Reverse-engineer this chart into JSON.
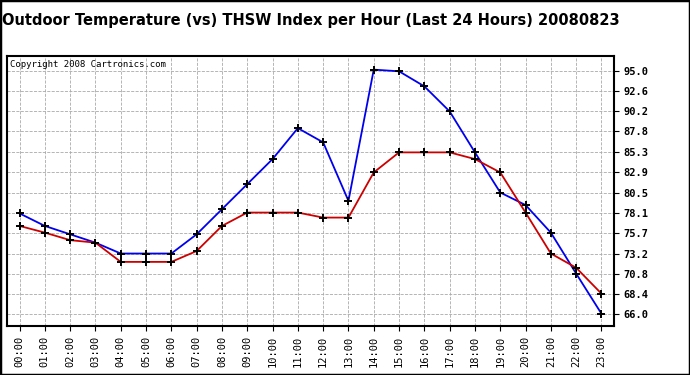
{
  "title": "Outdoor Temperature (vs) THSW Index per Hour (Last 24 Hours) 20080823",
  "copyright_text": "Copyright 2008 Cartronics.com",
  "hours": [
    "00:00",
    "01:00",
    "02:00",
    "03:00",
    "04:00",
    "05:00",
    "06:00",
    "07:00",
    "08:00",
    "09:00",
    "10:00",
    "11:00",
    "12:00",
    "13:00",
    "14:00",
    "15:00",
    "16:00",
    "17:00",
    "18:00",
    "19:00",
    "20:00",
    "21:00",
    "22:00",
    "23:00"
  ],
  "thsw_blue": [
    78.0,
    76.5,
    75.5,
    74.5,
    73.2,
    73.2,
    73.2,
    75.5,
    78.5,
    81.5,
    84.5,
    88.2,
    86.5,
    79.5,
    95.2,
    95.0,
    93.2,
    90.2,
    85.3,
    80.5,
    79.0,
    75.7,
    70.8,
    66.0
  ],
  "temp_red": [
    76.5,
    75.7,
    74.8,
    74.5,
    72.2,
    72.2,
    72.2,
    73.5,
    76.5,
    78.1,
    78.1,
    78.1,
    77.5,
    77.5,
    82.9,
    85.3,
    85.3,
    85.3,
    84.5,
    82.9,
    78.1,
    73.2,
    71.5,
    68.4
  ],
  "ylim_min": 64.5,
  "ylim_max": 96.8,
  "yticks": [
    66.0,
    68.4,
    70.8,
    73.2,
    75.7,
    78.1,
    80.5,
    82.9,
    85.3,
    87.8,
    90.2,
    92.6,
    95.0
  ],
  "background_color": "#ffffff",
  "plot_bg_color": "#ffffff",
  "grid_color": "#aaaaaa",
  "blue_color": "#0000ee",
  "red_color": "#cc0000",
  "title_fontsize": 10.5,
  "copyright_fontsize": 6.5,
  "tick_fontsize": 7.5
}
